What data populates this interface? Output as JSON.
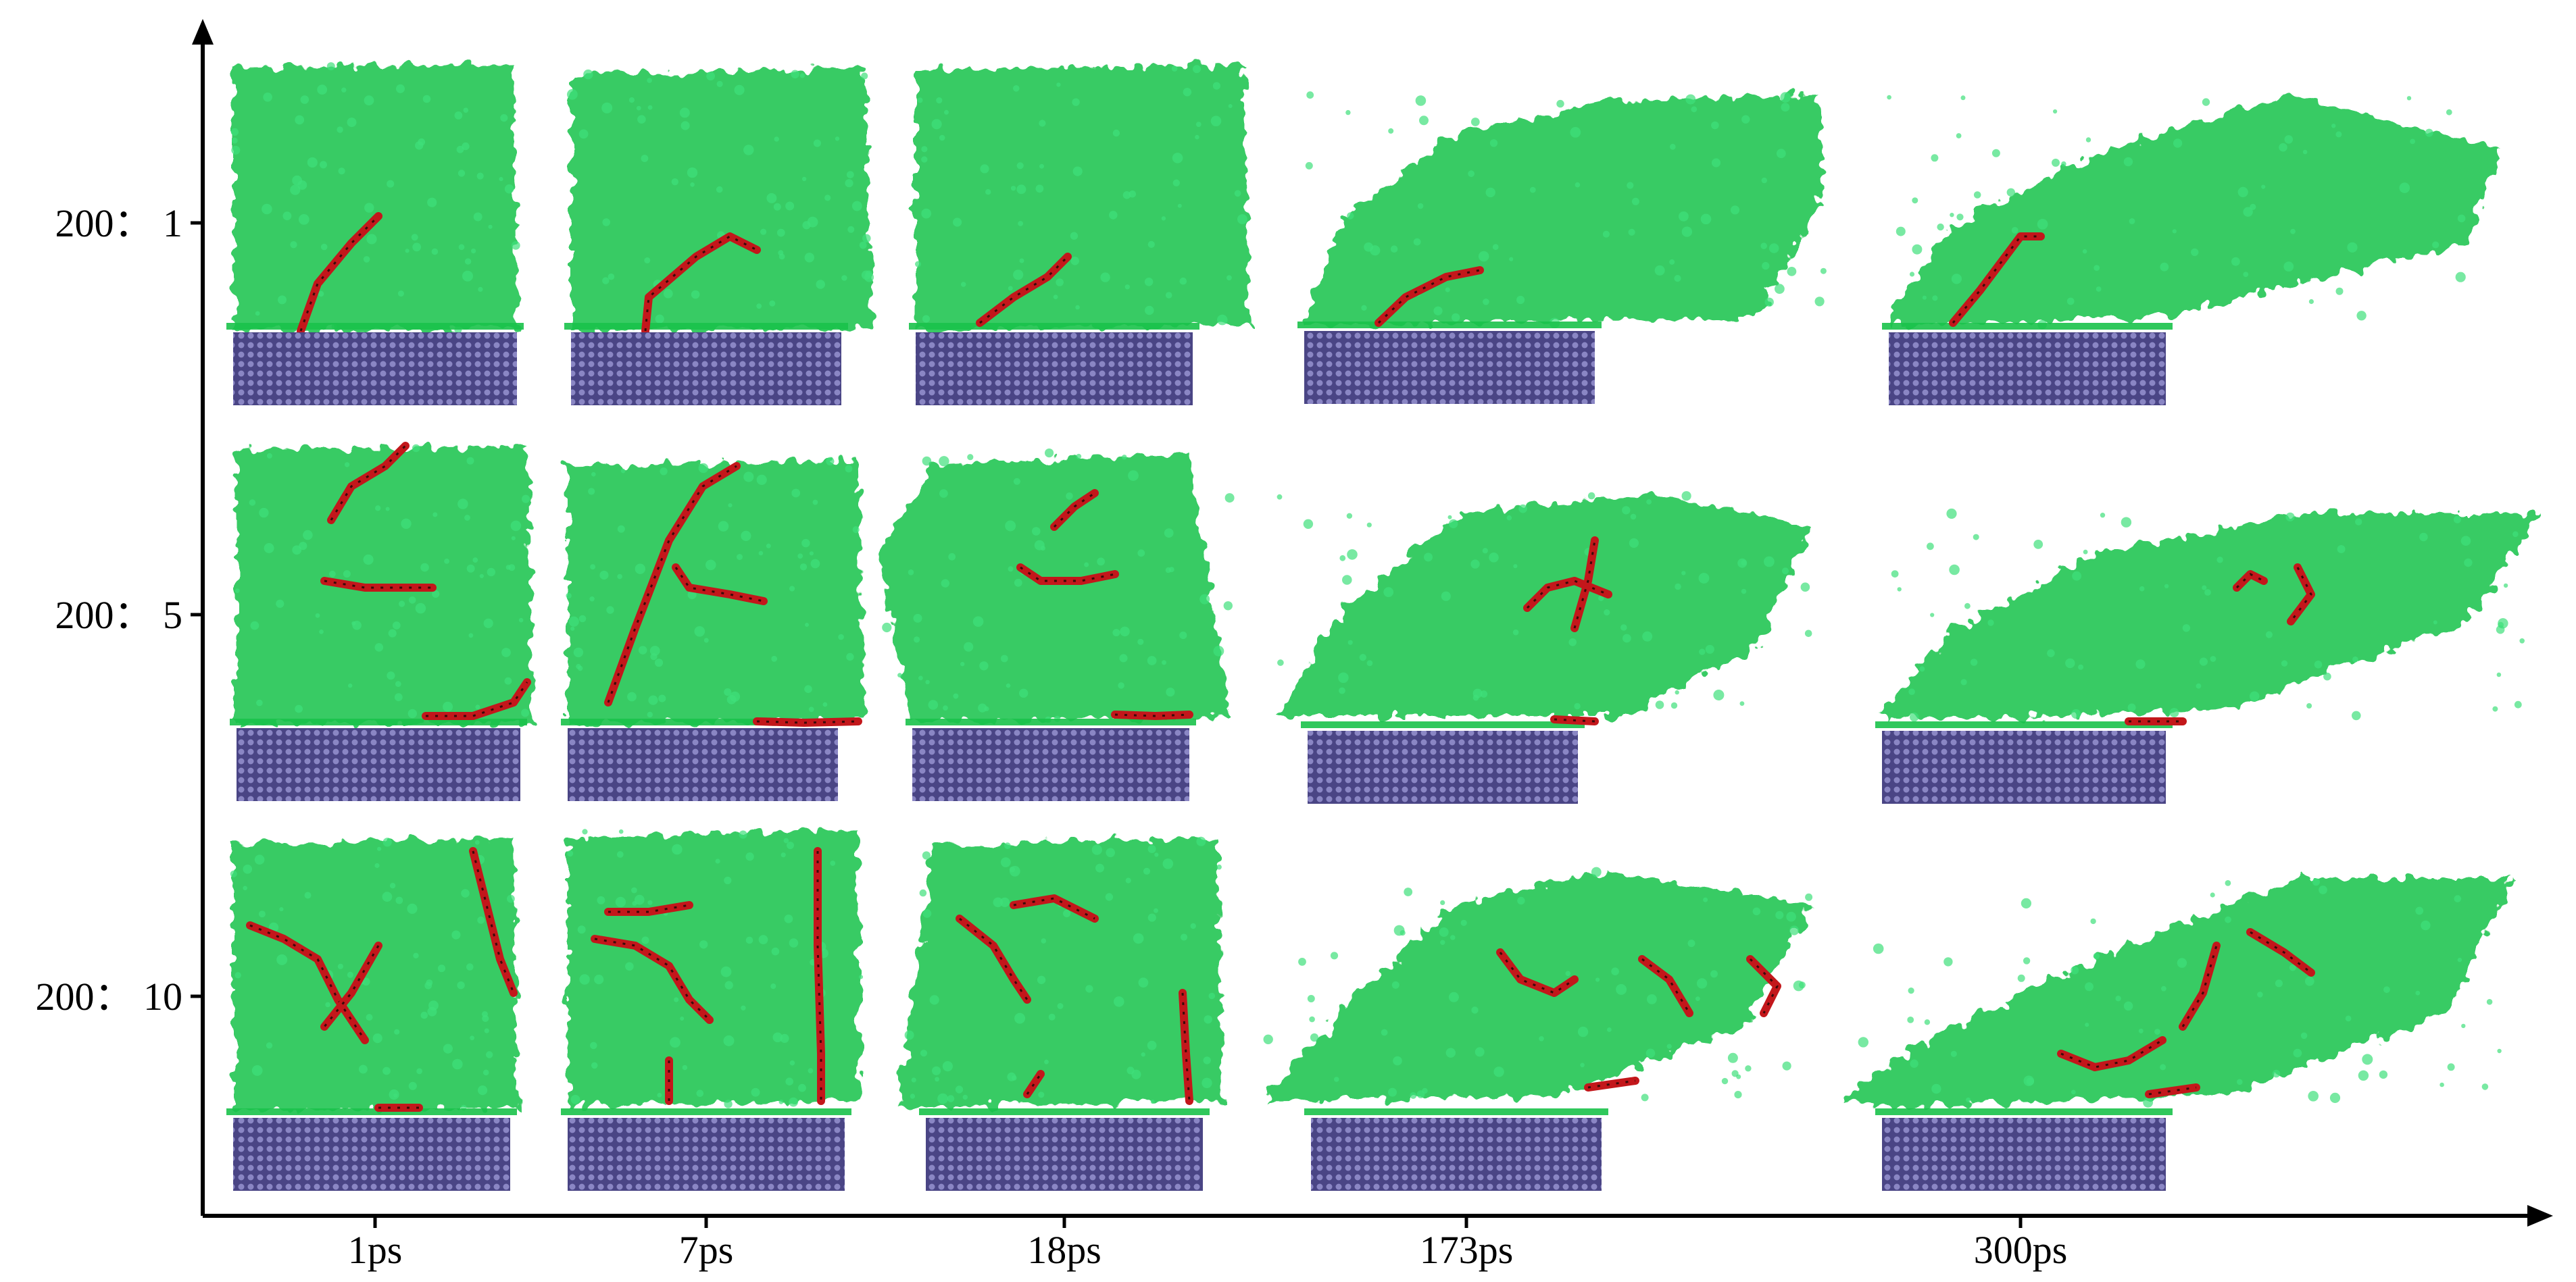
{
  "figure": {
    "row_labels": [
      "200： 1",
      "200： 5",
      "200： 10"
    ],
    "column_labels": [
      "1ps",
      "7ps",
      "18ps",
      "173ps",
      "300ps"
    ]
  },
  "colors": {
    "polymer": "#19c24a",
    "polymer_light": "#3fe07a",
    "chain": "#c3171b",
    "substrate": "#4a4585",
    "substrate_dots": "#8a86c4",
    "axis": "#000000"
  },
  "icons": {
    "axis_arrow_up": "arrowhead-up-icon",
    "axis_arrow_right": "arrowhead-right-icon"
  }
}
